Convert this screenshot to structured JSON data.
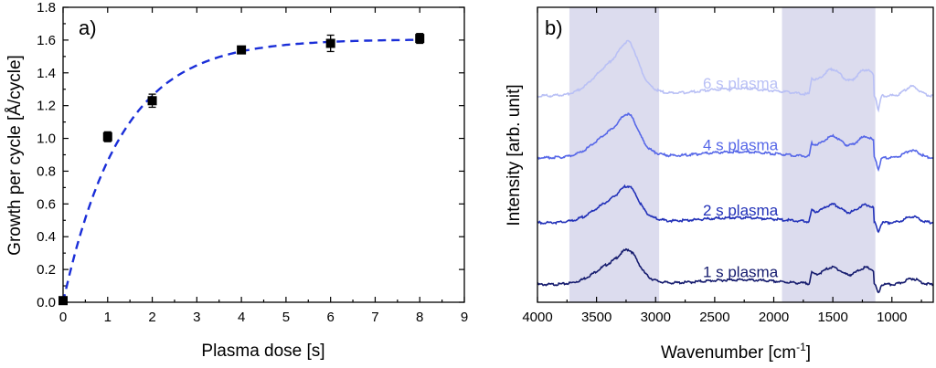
{
  "chart_data": [
    {
      "type": "scatter",
      "panel": "a)",
      "xlabel": "Plasma dose [s]",
      "ylabel": "Growth per cycle [Å/cycle]",
      "xlim": [
        0,
        9
      ],
      "ylim": [
        0.0,
        1.8
      ],
      "xticks": [
        "0",
        "1",
        "2",
        "3",
        "4",
        "5",
        "6",
        "7",
        "8",
        "9"
      ],
      "yticks": [
        "0.0",
        "0.2",
        "0.4",
        "0.6",
        "0.8",
        "1.0",
        "1.2",
        "1.4",
        "1.6",
        "1.8"
      ],
      "points": [
        {
          "x": 0,
          "y": 0.01,
          "err": 0.02
        },
        {
          "x": 1,
          "y": 1.01,
          "err": 0.03
        },
        {
          "x": 2,
          "y": 1.23,
          "err": 0.04
        },
        {
          "x": 4,
          "y": 1.54,
          "err": 0.02
        },
        {
          "x": 6,
          "y": 1.58,
          "err": 0.05
        },
        {
          "x": 8,
          "y": 1.61,
          "err": 0.03
        }
      ],
      "fit": {
        "style": "dashed",
        "model": "saturation",
        "amplitude": 1.605,
        "rate": 0.77,
        "color": "#1a2ed8"
      },
      "marker_color": "#000000",
      "grid": false
    },
    {
      "type": "line",
      "panel": "b)",
      "xlabel": "Wavenumber [cm",
      "xlabel_sup": "-1",
      "xlabel_end": "]",
      "ylabel": "Intensity [arb. unit]",
      "xlim": [
        4000,
        650
      ],
      "x_reversed": true,
      "xticks": [
        "4000",
        "3500",
        "3000",
        "2500",
        "2000",
        "1500",
        "1000"
      ],
      "shaded_regions": [
        [
          3730,
          2970
        ],
        [
          1930,
          1140
        ]
      ],
      "shade_color": "#dcdcee",
      "series": [
        {
          "name": "1 s plasma",
          "color": "#151b6e",
          "baseline": 0.06,
          "scale": 1.0
        },
        {
          "name": "2 s plasma",
          "color": "#2231b8",
          "baseline": 0.27,
          "scale": 1.05
        },
        {
          "name": "4 s plasma",
          "color": "#5667e8",
          "baseline": 0.49,
          "scale": 1.25
        },
        {
          "name": "6 s plasma",
          "color": "#b9c0f5",
          "baseline": 0.7,
          "scale": 1.55
        }
      ],
      "grid": false
    }
  ]
}
